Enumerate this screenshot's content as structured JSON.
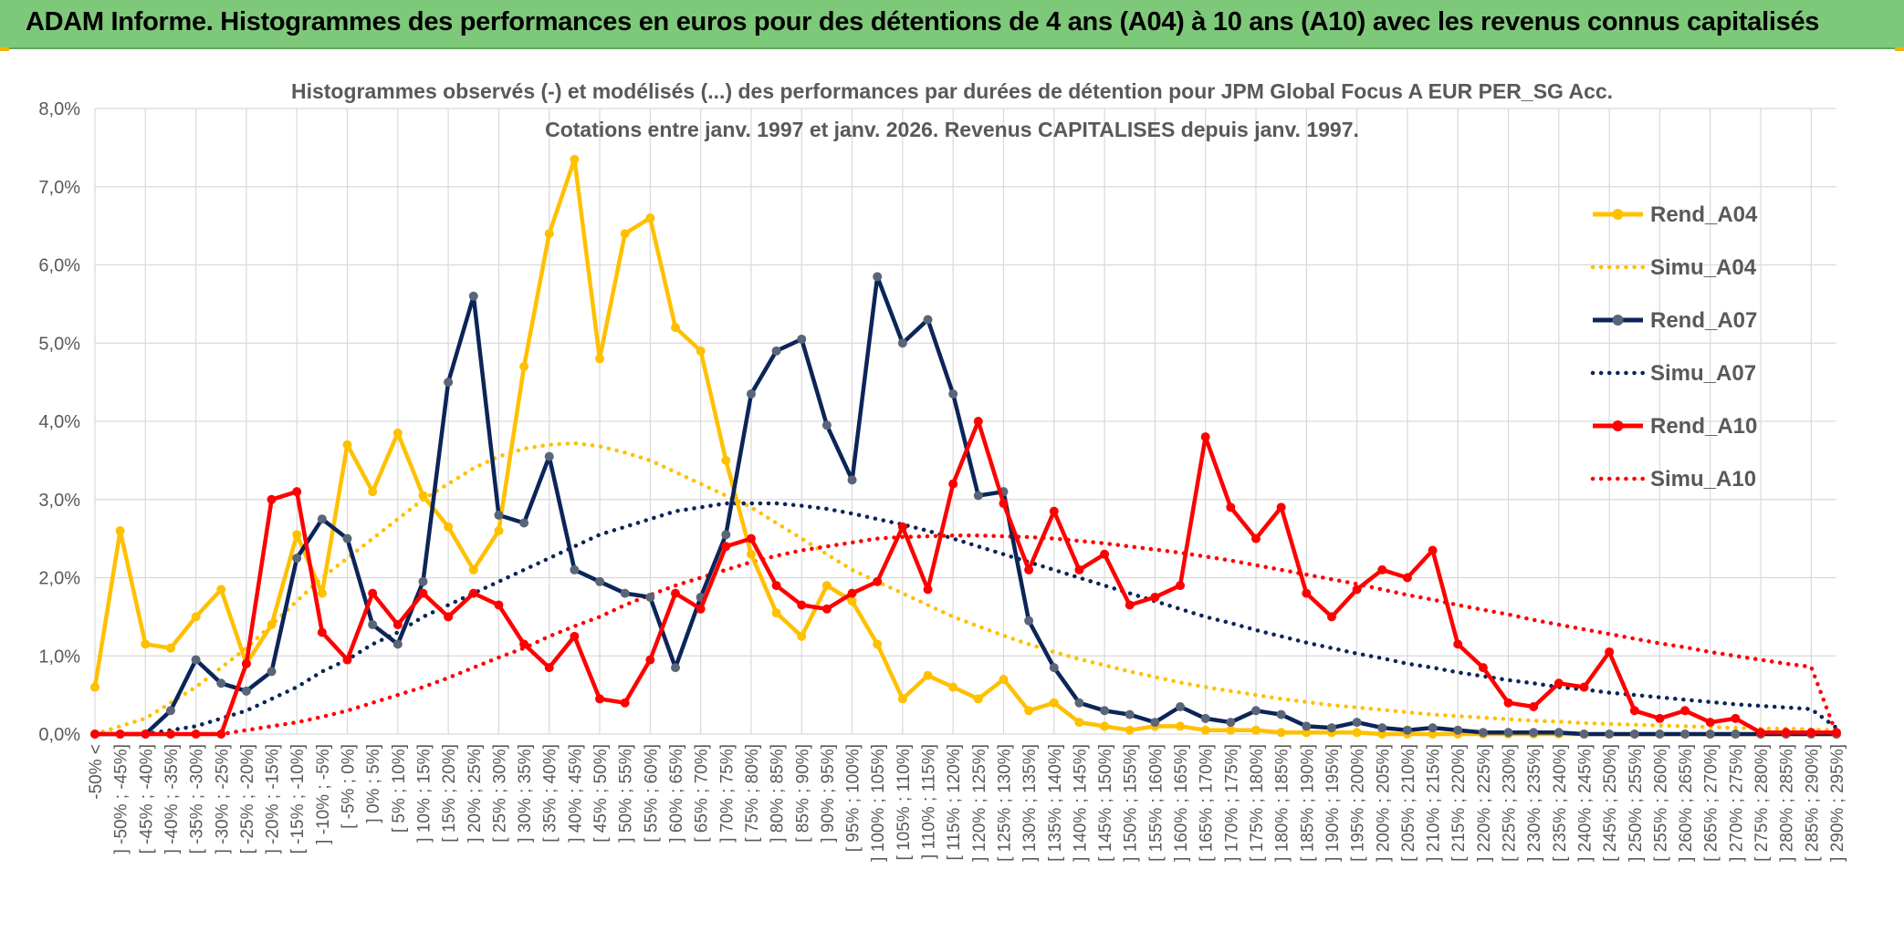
{
  "banner": {
    "title": "ADAM Informe. Histogrammes des performances en euros pour des détentions de 4 ans (A04) à 10 ans (A10) avec les revenus connus capitalisés"
  },
  "colors": {
    "banner_bg": "#7ec87a",
    "A04": "#ffc000",
    "A07": "#0b2559",
    "A07_marker": "#5a6578",
    "A10": "#ff0000",
    "grid": "#d9d9d9",
    "text": "#595959"
  },
  "chart_data": {
    "type": "line",
    "title": "Histogrammes observés (-) et modélisés (...) des performances par durées de détention pour JPM Global Focus A EUR PER_SG Acc.",
    "subtitle": "Cotations entre janv. 1997 et janv. 2026. Revenus CAPITALISES depuis janv. 1997.",
    "xlabel": "",
    "ylabel": "",
    "ylim": [
      0,
      8
    ],
    "ytick_step": 1,
    "ytick_labels": [
      "0,0%",
      "1,0%",
      "2,0%",
      "3,0%",
      "4,0%",
      "5,0%",
      "6,0%",
      "7,0%",
      "8,0%"
    ],
    "grid": true,
    "legend_position": "right",
    "categories": [
      "-50% <",
      "] -50% ; -45%]",
      "[ -45% ; -40%]",
      "] -40% ; -35%]",
      "[ -35% ; -30%]",
      "] -30% ; -25%]",
      "[ -25% ; -20%]",
      "] -20% ; -15%]",
      "[ -15% ; -10%]",
      "] -10% ; -5%]",
      "[ -5% ; 0%]",
      "] 0% ; 5%]",
      "[ 5% ; 10%]",
      "] 10% ; 15%]",
      "[ 15% ; 20%]",
      "] 20% ; 25%]",
      "[ 25% ; 30%]",
      "] 30% ; 35%]",
      "[ 35% ; 40%]",
      "] 40% ; 45%]",
      "[ 45% ; 50%]",
      "] 50% ; 55%]",
      "[ 55% ; 60%]",
      "] 60% ; 65%]",
      "[ 65% ; 70%]",
      "] 70% ; 75%]",
      "[ 75% ; 80%]",
      "] 80% ; 85%]",
      "[ 85% ; 90%]",
      "] 90% ; 95%]",
      "[ 95% ; 100%]",
      "] 100% ; 105%]",
      "[ 105% ; 110%]",
      "] 110% ; 115%]",
      "[ 115% ; 120%]",
      "] 120% ; 125%]",
      "[ 125% ; 130%]",
      "] 130% ; 135%]",
      "[ 135% ; 140%]",
      "] 140% ; 145%]",
      "[ 145% ; 150%]",
      "] 150% ; 155%]",
      "[ 155% ; 160%]",
      "] 160% ; 165%]",
      "[ 165% ; 170%]",
      "] 170% ; 175%]",
      "[ 175% ; 180%]",
      "] 180% ; 185%]",
      "[ 185% ; 190%]",
      "] 190% ; 195%]",
      "[ 195% ; 200%]",
      "] 200% ; 205%]",
      "[ 205% ; 210%]",
      "] 210% ; 215%]",
      "[ 215% ; 220%]",
      "] 220% ; 225%]",
      "[ 225% ; 230%]",
      "] 230% ; 235%]",
      "[ 235% ; 240%]",
      "] 240% ; 245%]",
      "[ 245% ; 250%]",
      "] 250% ; 255%]",
      "[ 255% ; 260%]",
      "] 260% ; 265%]",
      "[ 265% ; 270%]",
      "] 270% ; 275%]",
      "[ 275% ; 280%]",
      "] 280% ; 285%]",
      "[ 285% ; 290%]",
      "] 290% ; 295%]"
    ],
    "series": [
      {
        "name": "Rend_A04",
        "style": "solid",
        "color": "#ffc000",
        "values": [
          0.6,
          2.6,
          1.15,
          1.1,
          1.5,
          1.85,
          0.9,
          1.4,
          2.55,
          1.8,
          3.7,
          3.1,
          3.85,
          3.05,
          2.65,
          2.1,
          2.6,
          4.7,
          6.4,
          7.35,
          4.8,
          6.4,
          6.6,
          5.2,
          4.9,
          3.5,
          2.3,
          1.55,
          1.25,
          1.9,
          1.7,
          1.15,
          0.45,
          0.75,
          0.6,
          0.45,
          0.7,
          0.3,
          0.4,
          0.15,
          0.1,
          0.05,
          0.1,
          0.1,
          0.05,
          0.05,
          0.05,
          0.02,
          0.02,
          0.02,
          0.02,
          0,
          0,
          0,
          0,
          0,
          0,
          0,
          0,
          0,
          0,
          0,
          0,
          0,
          0,
          0,
          0,
          0,
          0,
          0
        ]
      },
      {
        "name": "Simu_A04",
        "style": "dotted",
        "color": "#ffc000",
        "values": [
          0.0,
          0.1,
          0.2,
          0.4,
          0.6,
          0.85,
          1.1,
          1.4,
          1.7,
          2.0,
          2.25,
          2.5,
          2.75,
          3.0,
          3.2,
          3.4,
          3.55,
          3.65,
          3.7,
          3.72,
          3.68,
          3.6,
          3.5,
          3.35,
          3.2,
          3.05,
          2.9,
          2.7,
          2.5,
          2.3,
          2.1,
          1.95,
          1.8,
          1.65,
          1.5,
          1.38,
          1.26,
          1.15,
          1.05,
          0.96,
          0.88,
          0.8,
          0.73,
          0.66,
          0.6,
          0.55,
          0.5,
          0.45,
          0.41,
          0.37,
          0.34,
          0.31,
          0.28,
          0.25,
          0.23,
          0.21,
          0.19,
          0.17,
          0.16,
          0.14,
          0.13,
          0.12,
          0.11,
          0.1,
          0.09,
          0.08,
          0.07,
          0.07,
          0.06,
          0.05
        ]
      },
      {
        "name": "Rend_A07",
        "style": "solid",
        "color": "#0b2559",
        "values": [
          0,
          0,
          0,
          0.3,
          0.95,
          0.65,
          0.55,
          0.8,
          2.25,
          2.75,
          2.5,
          1.4,
          1.15,
          1.95,
          4.5,
          5.6,
          2.8,
          2.7,
          3.55,
          2.1,
          1.95,
          1.8,
          1.75,
          0.85,
          1.75,
          2.55,
          4.35,
          4.9,
          5.05,
          3.95,
          3.25,
          5.85,
          5.0,
          5.3,
          4.35,
          3.05,
          3.1,
          1.45,
          0.85,
          0.4,
          0.3,
          0.25,
          0.15,
          0.35,
          0.2,
          0.15,
          0.3,
          0.25,
          0.1,
          0.08,
          0.15,
          0.08,
          0.05,
          0.08,
          0.05,
          0.02,
          0.02,
          0.02,
          0.02,
          0,
          0,
          0,
          0,
          0,
          0,
          0,
          0,
          0,
          0,
          0
        ]
      },
      {
        "name": "Simu_A07",
        "style": "dotted",
        "color": "#0b2559",
        "values": [
          0,
          0,
          0,
          0.05,
          0.1,
          0.2,
          0.3,
          0.45,
          0.6,
          0.8,
          0.95,
          1.15,
          1.3,
          1.5,
          1.65,
          1.8,
          1.95,
          2.1,
          2.25,
          2.4,
          2.55,
          2.65,
          2.75,
          2.85,
          2.9,
          2.95,
          2.95,
          2.95,
          2.92,
          2.88,
          2.82,
          2.75,
          2.68,
          2.6,
          2.5,
          2.4,
          2.3,
          2.2,
          2.1,
          2.0,
          1.9,
          1.8,
          1.7,
          1.6,
          1.5,
          1.42,
          1.33,
          1.25,
          1.17,
          1.1,
          1.03,
          0.97,
          0.9,
          0.85,
          0.79,
          0.74,
          0.69,
          0.65,
          0.6,
          0.57,
          0.53,
          0.5,
          0.47,
          0.44,
          0.41,
          0.38,
          0.36,
          0.34,
          0.32,
          0.08
        ]
      },
      {
        "name": "Rend_A10",
        "style": "solid",
        "color": "#ff0000",
        "values": [
          0,
          0,
          0,
          0,
          0,
          0,
          0.9,
          3.0,
          3.1,
          1.3,
          0.95,
          1.8,
          1.4,
          1.8,
          1.5,
          1.8,
          1.65,
          1.15,
          0.85,
          1.25,
          0.45,
          0.4,
          0.95,
          1.8,
          1.6,
          2.4,
          2.5,
          1.9,
          1.65,
          1.6,
          1.8,
          1.95,
          2.65,
          1.85,
          3.2,
          4.0,
          2.95,
          2.1,
          2.85,
          2.1,
          2.3,
          1.65,
          1.75,
          1.9,
          3.8,
          2.9,
          2.5,
          2.9,
          1.8,
          1.5,
          1.85,
          2.1,
          2.0,
          2.35,
          1.15,
          0.85,
          0.4,
          0.35,
          0.65,
          0.6,
          1.05,
          0.3,
          0.2,
          0.3,
          0.15,
          0.2,
          0.02,
          0.02,
          0.02,
          0.02
        ]
      },
      {
        "name": "Simu_A10",
        "style": "dotted",
        "color": "#ff0000",
        "values": [
          0,
          0,
          0,
          0,
          0,
          0,
          0.05,
          0.1,
          0.15,
          0.22,
          0.3,
          0.4,
          0.5,
          0.6,
          0.72,
          0.85,
          0.98,
          1.1,
          1.25,
          1.38,
          1.5,
          1.65,
          1.78,
          1.9,
          2.0,
          2.1,
          2.2,
          2.28,
          2.35,
          2.4,
          2.45,
          2.5,
          2.52,
          2.53,
          2.54,
          2.54,
          2.53,
          2.52,
          2.5,
          2.47,
          2.44,
          2.4,
          2.36,
          2.32,
          2.27,
          2.22,
          2.16,
          2.1,
          2.04,
          1.98,
          1.92,
          1.85,
          1.78,
          1.72,
          1.65,
          1.59,
          1.53,
          1.46,
          1.4,
          1.34,
          1.28,
          1.22,
          1.16,
          1.11,
          1.05,
          1.0,
          0.95,
          0.9,
          0.86,
          0.0
        ]
      }
    ]
  }
}
